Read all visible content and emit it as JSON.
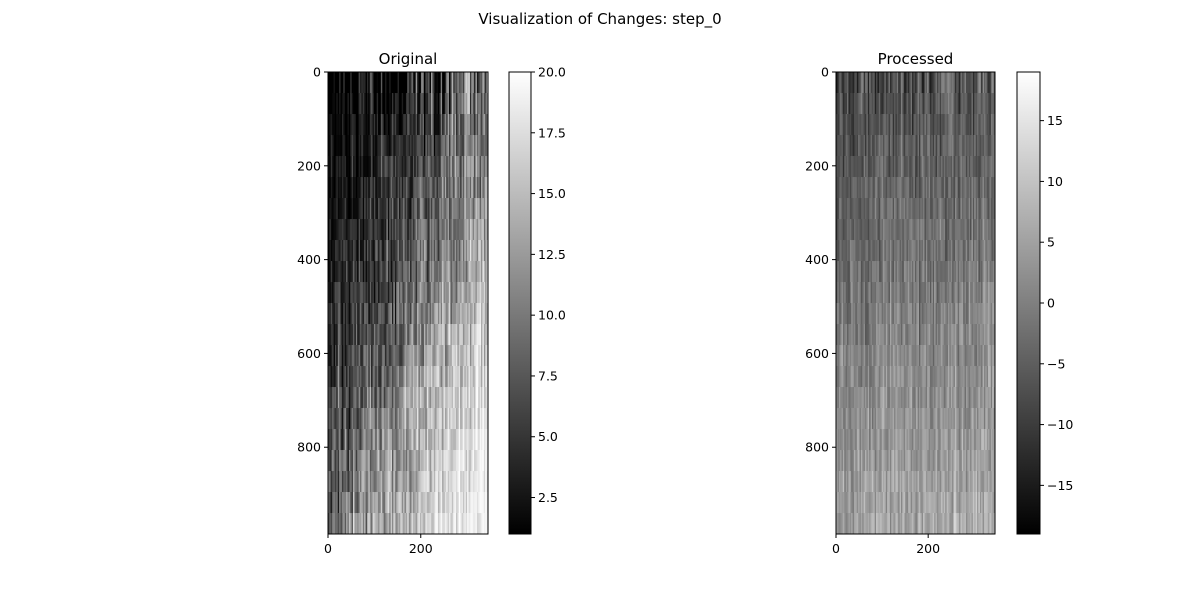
{
  "figure": {
    "suptitle": "Visualization of Changes: step_0"
  },
  "chart_data": [
    {
      "type": "heatmap",
      "title": "Original",
      "colormap": "gray",
      "image_shape": {
        "rows": 985,
        "cols": 345
      },
      "xlim": [
        0,
        345
      ],
      "ylim": [
        985,
        0
      ],
      "x_ticks": [
        0,
        200
      ],
      "x_tick_labels": [
        "0",
        "200"
      ],
      "y_ticks": [
        0,
        200,
        400,
        600,
        800
      ],
      "y_tick_labels": [
        "0",
        "200",
        "400",
        "600",
        "800"
      ],
      "colorbar": {
        "range": [
          1,
          20
        ],
        "ticks": [
          2.5,
          5.0,
          7.5,
          10.0,
          12.5,
          15.0,
          17.5,
          20.0
        ],
        "tick_labels": [
          "2.5",
          "5.0",
          "7.5",
          "10.0",
          "12.5",
          "15.0",
          "17.5",
          "20.0"
        ]
      }
    },
    {
      "type": "heatmap",
      "title": "Processed",
      "colormap": "gray",
      "image_shape": {
        "rows": 985,
        "cols": 345
      },
      "xlim": [
        0,
        345
      ],
      "ylim": [
        985,
        0
      ],
      "x_ticks": [
        0,
        200
      ],
      "x_tick_labels": [
        "0",
        "200"
      ],
      "y_ticks": [
        0,
        200,
        400,
        600,
        800
      ],
      "y_tick_labels": [
        "0",
        "200",
        "400",
        "600",
        "800"
      ],
      "colorbar": {
        "range": [
          -19,
          19
        ],
        "ticks": [
          -15,
          -10,
          -5,
          0,
          5,
          10,
          15
        ],
        "tick_labels": [
          "−15",
          "−10",
          "−5",
          "0",
          "5",
          "10",
          "15"
        ]
      }
    }
  ]
}
